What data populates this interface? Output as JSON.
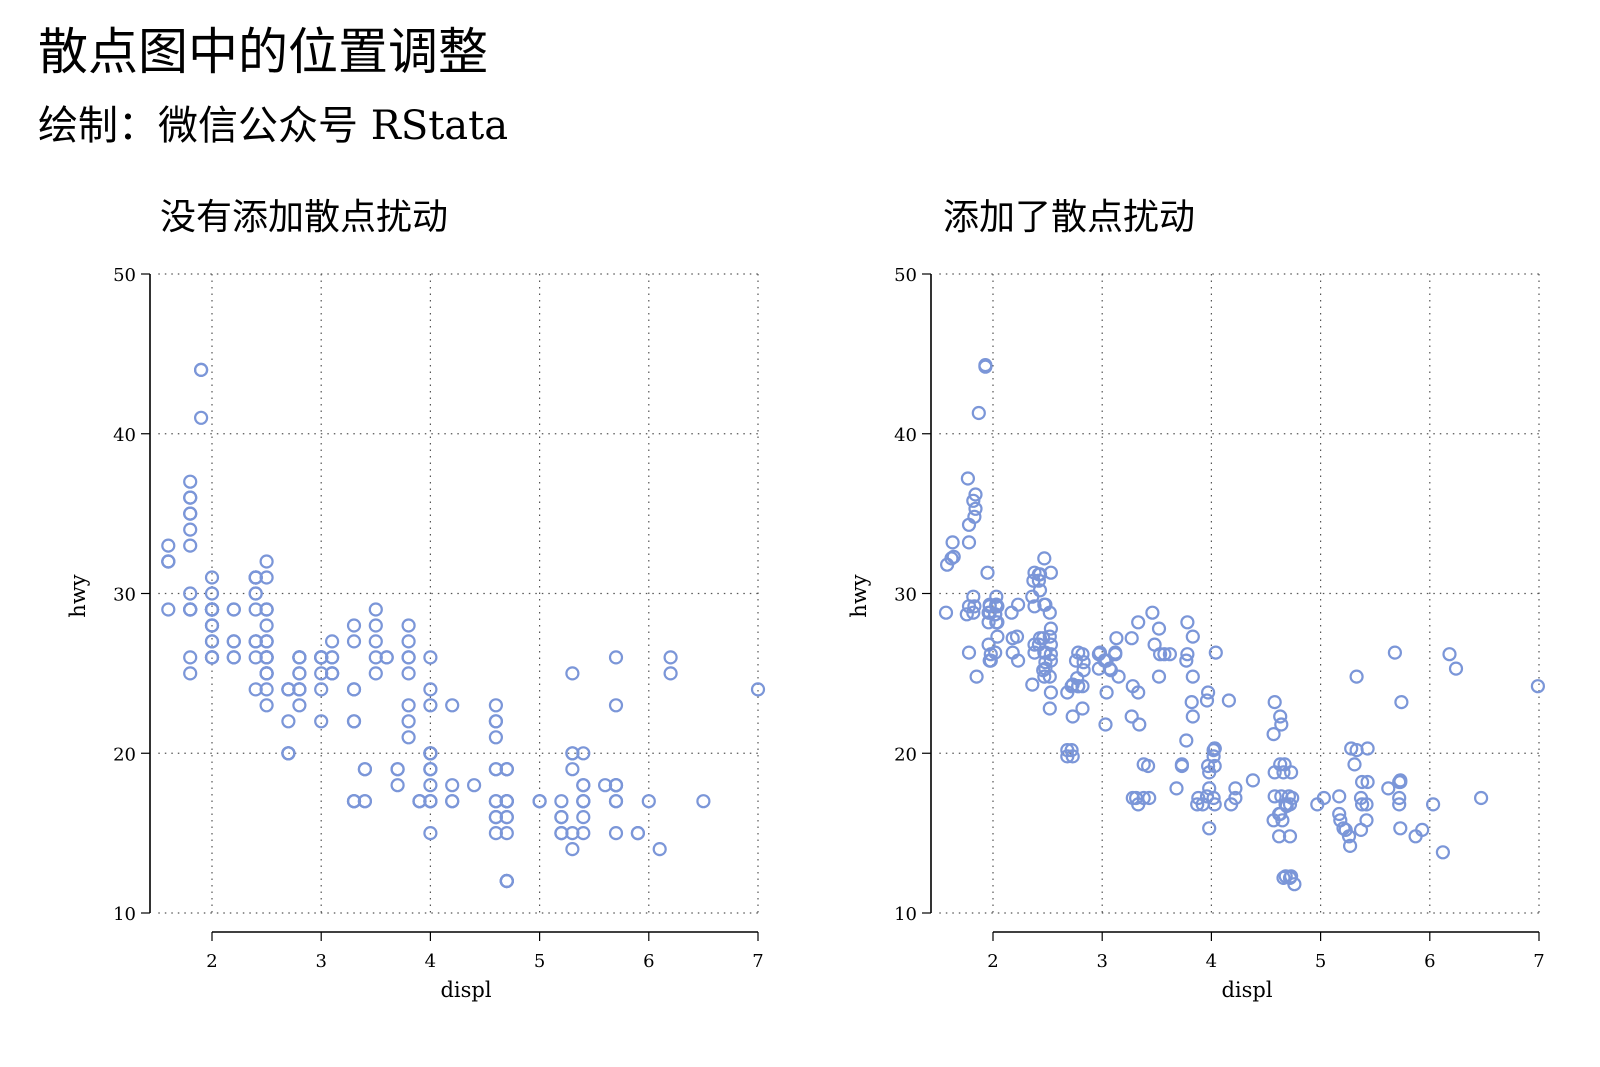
{
  "title": "散点图中的位置调整",
  "subtitle": "绘制：微信公众号 RStata",
  "colors": {
    "point": "#7b96d8"
  },
  "chart_data": [
    {
      "type": "scatter",
      "title": "没有添加散点扰动",
      "xlabel": "displ",
      "ylabel": "hwy",
      "xlim": [
        1.6,
        7.0
      ],
      "ylim": [
        10,
        50
      ],
      "xticks": [
        2,
        3,
        4,
        5,
        6,
        7
      ],
      "yticks": [
        10,
        20,
        30,
        40,
        50
      ],
      "grid": true,
      "x": [
        1.8,
        1.8,
        2,
        2,
        2.8,
        2.8,
        3.1,
        1.8,
        1.8,
        2,
        2,
        2.8,
        2.8,
        3.1,
        3.1,
        2.8,
        3.1,
        4.2,
        5.3,
        5.3,
        5.3,
        5.7,
        6,
        5.7,
        5.7,
        6.2,
        6.2,
        7,
        5.3,
        5.3,
        5.7,
        6.5,
        2.4,
        2.4,
        3.1,
        3.5,
        3.6,
        2.4,
        3,
        3.3,
        3.3,
        3.3,
        3.3,
        3.3,
        3.8,
        3.8,
        3.8,
        4,
        3.7,
        3.7,
        3.9,
        3.9,
        4.7,
        4.7,
        4.7,
        5.2,
        5.2,
        3.9,
        4.7,
        4.7,
        4.7,
        5.2,
        5.7,
        5.9,
        4.7,
        4.7,
        4.7,
        4.7,
        4.7,
        4.7,
        5.2,
        5.2,
        5.7,
        5.9,
        4.6,
        5.4,
        5.4,
        4,
        4,
        4,
        4,
        4.6,
        5,
        4.2,
        4.2,
        4.6,
        4.6,
        4.6,
        5.4,
        5.4,
        3.8,
        3.8,
        4,
        4,
        4.6,
        4.6,
        4.6,
        4.6,
        5.4,
        1.6,
        1.6,
        1.6,
        1.6,
        1.6,
        1.8,
        1.8,
        1.8,
        2,
        2.4,
        2.4,
        2.4,
        2.4,
        2.5,
        2.5,
        3.3,
        2,
        2,
        2,
        2,
        2.7,
        2.7,
        2.7,
        3,
        3.7,
        4,
        4.7,
        4.7,
        4.7,
        5.7,
        6.1,
        4,
        4.2,
        4.4,
        4.6,
        5.4,
        5.4,
        5.4,
        4,
        4,
        4.6,
        5,
        2.4,
        2.4,
        2.5,
        2.5,
        3.5,
        3.5,
        3,
        3,
        3.5,
        3.3,
        3.3,
        4,
        5.6,
        3.1,
        3.8,
        3.8,
        3.8,
        5.3,
        2.5,
        2.5,
        2.5,
        2.5,
        2.5,
        2.5,
        2.2,
        2.2,
        2.5,
        2.5,
        2.5,
        2.5,
        2.5,
        2.5,
        2.7,
        2.7,
        3.4,
        3.4,
        4,
        4.7,
        2.2,
        2.2,
        2.4,
        2.4,
        3,
        3,
        3.5,
        2.2,
        2.2,
        2.4,
        2.4,
        3,
        3,
        3.3,
        1.8,
        1.8,
        1.8,
        1.8,
        1.8,
        4.7,
        5.7,
        2.7,
        2.7,
        2.7,
        3.4,
        3.4,
        4,
        4,
        2,
        2,
        2,
        2,
        2.8,
        1.9,
        2,
        2,
        2,
        2,
        2.5,
        2.5,
        2.8,
        2.8,
        1.9,
        1.9,
        2,
        2,
        2.5,
        2.5,
        1.8,
        1.8,
        2,
        2,
        2.8,
        2.8,
        3.6
      ],
      "y": [
        29,
        29,
        31,
        30,
        26,
        26,
        27,
        26,
        25,
        28,
        27,
        25,
        25,
        25,
        25,
        24,
        25,
        23,
        20,
        15,
        20,
        17,
        17,
        26,
        23,
        26,
        25,
        24,
        19,
        14,
        15,
        17,
        27,
        30,
        26,
        29,
        26,
        24,
        24,
        22,
        22,
        24,
        24,
        17,
        22,
        21,
        23,
        23,
        19,
        18,
        17,
        17,
        19,
        19,
        12,
        17,
        15,
        17,
        17,
        12,
        17,
        16,
        18,
        15,
        16,
        12,
        17,
        17,
        16,
        12,
        15,
        16,
        17,
        15,
        17,
        17,
        18,
        17,
        19,
        17,
        19,
        19,
        17,
        17,
        17,
        16,
        16,
        17,
        15,
        17,
        26,
        25,
        26,
        24,
        21,
        22,
        23,
        22,
        20,
        33,
        32,
        32,
        29,
        32,
        34,
        36,
        36,
        29,
        26,
        27,
        30,
        31,
        26,
        26,
        28,
        26,
        29,
        28,
        27,
        24,
        24,
        24,
        22,
        19,
        20,
        17,
        12,
        19,
        18,
        14,
        15,
        18,
        18,
        15,
        17,
        16,
        18,
        17,
        19,
        19,
        17,
        29,
        27,
        31,
        32,
        27,
        26,
        26,
        25,
        25,
        17,
        17,
        20,
        18,
        26,
        26,
        27,
        28,
        25,
        25,
        24,
        27,
        25,
        26,
        23,
        26,
        26,
        26,
        26,
        25,
        27,
        25,
        27,
        20,
        20,
        19,
        17,
        20,
        17,
        29,
        27,
        31,
        31,
        26,
        26,
        28,
        27,
        29,
        31,
        31,
        26,
        26,
        27,
        30,
        33,
        35,
        37,
        35,
        15,
        18,
        20,
        20,
        22,
        17,
        19,
        18,
        20,
        29,
        26,
        29,
        29,
        24,
        44,
        29,
        26,
        29,
        29,
        29,
        29,
        23,
        24,
        44,
        41,
        29,
        26,
        28,
        29,
        29,
        29,
        28,
        29,
        26,
        26,
        26
      ]
    },
    {
      "type": "scatter",
      "title": "添加了散点扰动",
      "xlabel": "displ",
      "ylabel": "hwy",
      "xlim": [
        1.6,
        7.0
      ],
      "ylim": [
        10,
        50
      ],
      "xticks": [
        2,
        3,
        4,
        5,
        6,
        7
      ],
      "yticks": [
        10,
        20,
        30,
        40,
        50
      ],
      "grid": true,
      "x": [
        1.83,
        1.76,
        1.95,
        2.03,
        2.82,
        2.76,
        3.13,
        1.78,
        1.85,
        1.96,
        2.04,
        2.77,
        2.83,
        3.07,
        3.15,
        2.82,
        3.08,
        4.16,
        5.33,
        5.26,
        5.28,
        5.72,
        6.03,
        5.68,
        5.74,
        6.18,
        6.24,
        6.99,
        5.31,
        5.27,
        5.73,
        6.47,
        2.38,
        2.43,
        3.12,
        3.46,
        3.62,
        2.36,
        3.04,
        3.27,
        3.34,
        3.28,
        3.33,
        3.31,
        3.83,
        3.77,
        3.82,
        3.96,
        3.73,
        3.68,
        3.88,
        3.92,
        4.67,
        4.73,
        4.66,
        5.17,
        5.23,
        3.87,
        4.72,
        4.68,
        4.74,
        5.18,
        5.73,
        5.87,
        4.63,
        4.76,
        4.71,
        4.69,
        4.65,
        4.72,
        5.21,
        5.17,
        5.72,
        5.93,
        4.58,
        5.38,
        5.43,
        4.03,
        3.97,
        4.02,
        3.98,
        4.63,
        4.97,
        4.22,
        4.18,
        4.62,
        4.57,
        4.64,
        5.37,
        5.42,
        3.78,
        3.83,
        4.04,
        3.97,
        4.57,
        4.63,
        4.58,
        4.64,
        5.43,
        1.63,
        1.58,
        1.64,
        1.57,
        1.62,
        1.78,
        1.82,
        1.84,
        2.02,
        2.38,
        2.43,
        2.36,
        2.42,
        2.53,
        2.48,
        3.33,
        1.97,
        2.03,
        2.04,
        1.96,
        2.73,
        2.68,
        2.72,
        3.03,
        3.73,
        4.02,
        4.68,
        4.73,
        4.66,
        5.72,
        6.12,
        3.98,
        4.22,
        4.38,
        4.62,
        5.37,
        5.42,
        5.38,
        3.96,
        4.03,
        4.58,
        5.03,
        2.38,
        2.42,
        2.53,
        2.47,
        3.48,
        3.53,
        3.04,
        2.97,
        3.52,
        3.28,
        3.33,
        4.03,
        5.62,
        3.12,
        3.77,
        3.83,
        3.78,
        5.33,
        2.48,
        2.53,
        2.46,
        2.52,
        2.47,
        2.52,
        2.23,
        2.18,
        2.48,
        2.53,
        2.47,
        2.52,
        2.46,
        2.53,
        2.68,
        2.73,
        3.38,
        3.43,
        4.02,
        4.68,
        2.23,
        2.18,
        2.42,
        2.38,
        3.03,
        2.97,
        3.52,
        2.22,
        2.17,
        2.43,
        2.37,
        3.02,
        2.98,
        3.27,
        1.82,
        1.78,
        1.83,
        1.77,
        1.84,
        4.72,
        5.73,
        2.72,
        2.68,
        2.73,
        3.38,
        3.42,
        3.98,
        4.03,
        1.97,
        2.02,
        2.04,
        1.96,
        2.78,
        1.93,
        2.03,
        1.98,
        2.02,
        1.97,
        2.52,
        2.48,
        2.82,
        2.78,
        1.93,
        1.87,
        2.03,
        1.98,
        2.53,
        2.47,
        1.82,
        1.78,
        2.03,
        1.97,
        2.78,
        2.83,
        3.57
      ],
      "y": [
        29.2,
        28.7,
        31.3,
        29.8,
        26.2,
        25.8,
        27.2,
        26.3,
        24.8,
        28.2,
        27.3,
        24.7,
        25.2,
        25.3,
        24.8,
        24.2,
        25.2,
        23.3,
        20.2,
        14.8,
        20.3,
        17.2,
        16.8,
        26.3,
        23.2,
        26.2,
        25.3,
        24.2,
        19.3,
        14.2,
        15.3,
        17.2,
        26.8,
        30.2,
        26.3,
        28.8,
        26.2,
        24.3,
        23.8,
        22.3,
        21.8,
        24.2,
        23.8,
        17.2,
        22.3,
        20.8,
        23.2,
        23.3,
        19.2,
        17.8,
        17.2,
        16.8,
        19.3,
        18.8,
        12.2,
        17.3,
        15.2,
        16.8,
        16.8,
        12.3,
        17.2,
        15.8,
        18.2,
        14.8,
        16.2,
        11.8,
        17.3,
        16.7,
        15.8,
        12.2,
        15.3,
        16.2,
        16.8,
        15.2,
        17.3,
        16.8,
        18.2,
        16.8,
        19.2,
        17.2,
        18.8,
        19.3,
        16.8,
        17.2,
        16.8,
        16.2,
        15.8,
        17.3,
        15.2,
        16.8,
        26.2,
        24.8,
        26.3,
        23.8,
        21.2,
        22.3,
        23.2,
        21.8,
        20.3,
        33.2,
        31.8,
        32.3,
        28.8,
        32.2,
        34.3,
        35.8,
        36.2,
        28.7,
        26.3,
        27.2,
        29.8,
        31.2,
        25.8,
        26.3,
        28.2,
        25.8,
        29.3,
        28.2,
        26.8,
        24.3,
        23.8,
        24.2,
        21.8,
        19.3,
        20.2,
        16.8,
        12.3,
        18.8,
        18.2,
        13.8,
        15.3,
        17.8,
        18.3,
        14.8,
        17.2,
        15.8,
        18.2,
        17.3,
        19.2,
        18.8,
        17.2,
        29.2,
        26.8,
        31.3,
        32.2,
        26.8,
        26.2,
        25.8,
        25.3,
        24.8,
        17.2,
        16.8,
        20.3,
        17.8,
        26.2,
        25.8,
        27.3,
        28.2,
        24.8,
        25.3,
        23.8,
        27.2,
        24.8,
        26.3,
        22.8,
        25.8,
        26.3,
        25.7,
        26.2,
        24.8,
        27.3,
        25.2,
        26.8,
        20.2,
        19.8,
        19.3,
        17.2,
        19.8,
        16.8,
        29.3,
        27.2,
        30.8,
        31.3,
        25.8,
        26.2,
        27.8,
        27.3,
        28.8,
        31.2,
        30.8,
        25.8,
        26.3,
        27.2,
        29.8,
        33.2,
        34.8,
        37.2,
        35.3,
        14.8,
        18.3,
        20.2,
        19.8,
        22.3,
        17.2,
        19.2,
        17.8,
        20.3,
        28.8,
        26.3,
        29.2,
        28.8,
        24.2,
        44.3,
        29.3,
        25.8,
        28.7,
        29.2,
        28.8,
        29.3,
        22.8,
        24.2,
        44.2,
        41.3,
        29.2,
        26.2,
        27.8,
        29.3,
        28.8,
        29.2,
        28.2,
        29.3,
        26.3,
        25.7,
        26.2
      ]
    }
  ]
}
